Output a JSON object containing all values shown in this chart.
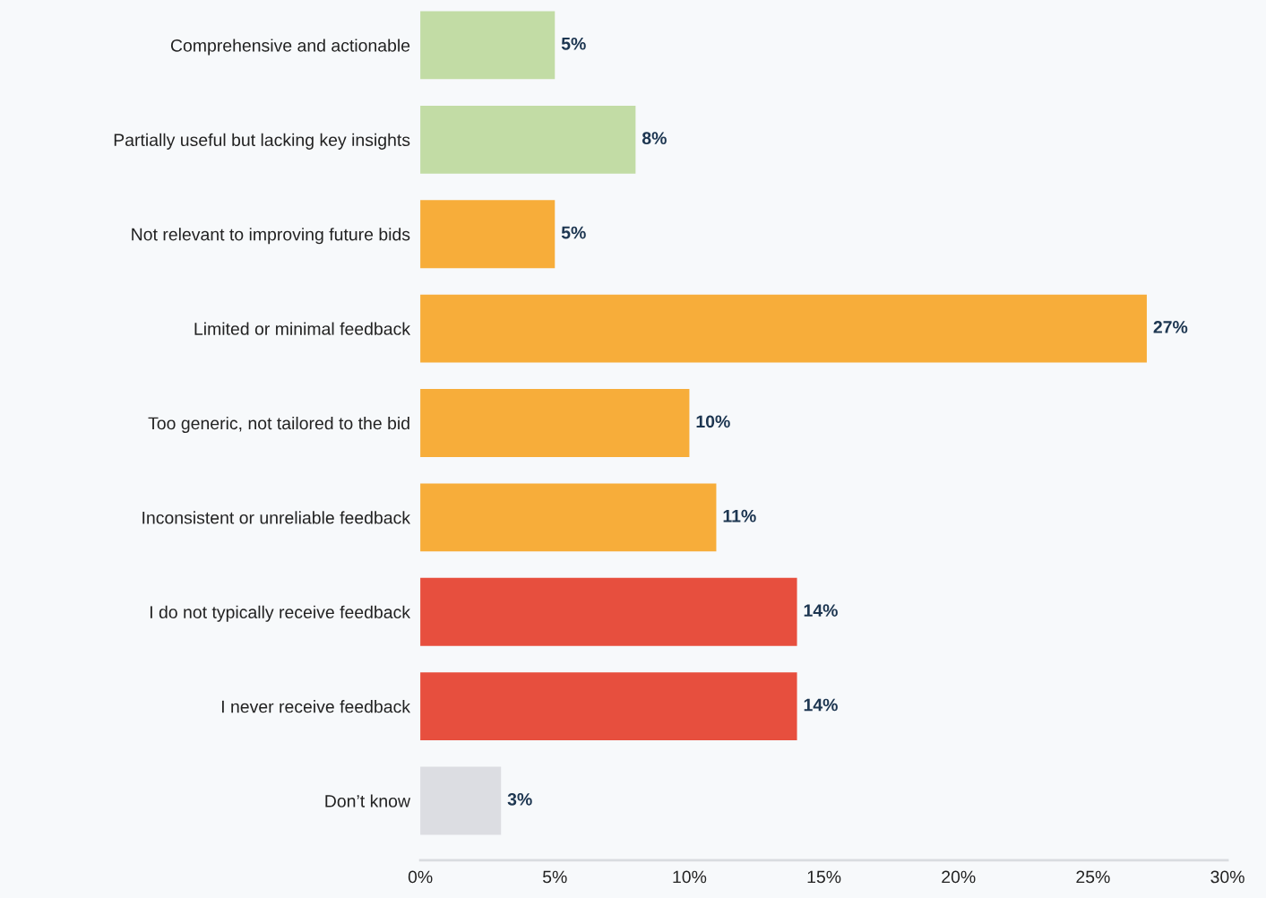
{
  "chart_data": {
    "type": "bar",
    "orientation": "horizontal",
    "categories": [
      "Comprehensive and actionable",
      "Partially useful but lacking key insights",
      "Not relevant to improving future bids",
      "Limited or minimal feedback",
      "Too generic, not tailored to the bid",
      "Inconsistent or unreliable feedback",
      "I do not typically receive feedback",
      "I never receive feedback",
      "Don’t know"
    ],
    "values": [
      5,
      8,
      5,
      27,
      10,
      11,
      14,
      14,
      3
    ],
    "colors": [
      "#c2dca5",
      "#c2dca5",
      "#f7ad3a",
      "#f7ad3a",
      "#f7ad3a",
      "#f7ad3a",
      "#e74f3e",
      "#e74f3e",
      "#dcdde2"
    ],
    "value_labels": [
      "5%",
      "8%",
      "5%",
      "27%",
      "10%",
      "11%",
      "14%",
      "14%",
      "3%"
    ],
    "xlim": [
      0,
      30
    ],
    "xticks": [
      {
        "value": 0,
        "label": "0%"
      },
      {
        "value": 5,
        "label": "5%"
      },
      {
        "value": 10,
        "label": "10%"
      },
      {
        "value": 15,
        "label": "15%"
      },
      {
        "value": 20,
        "label": "20%"
      },
      {
        "value": 25,
        "label": "25%"
      },
      {
        "value": 30,
        "label": "30%"
      }
    ],
    "grid": false,
    "legend": false
  }
}
